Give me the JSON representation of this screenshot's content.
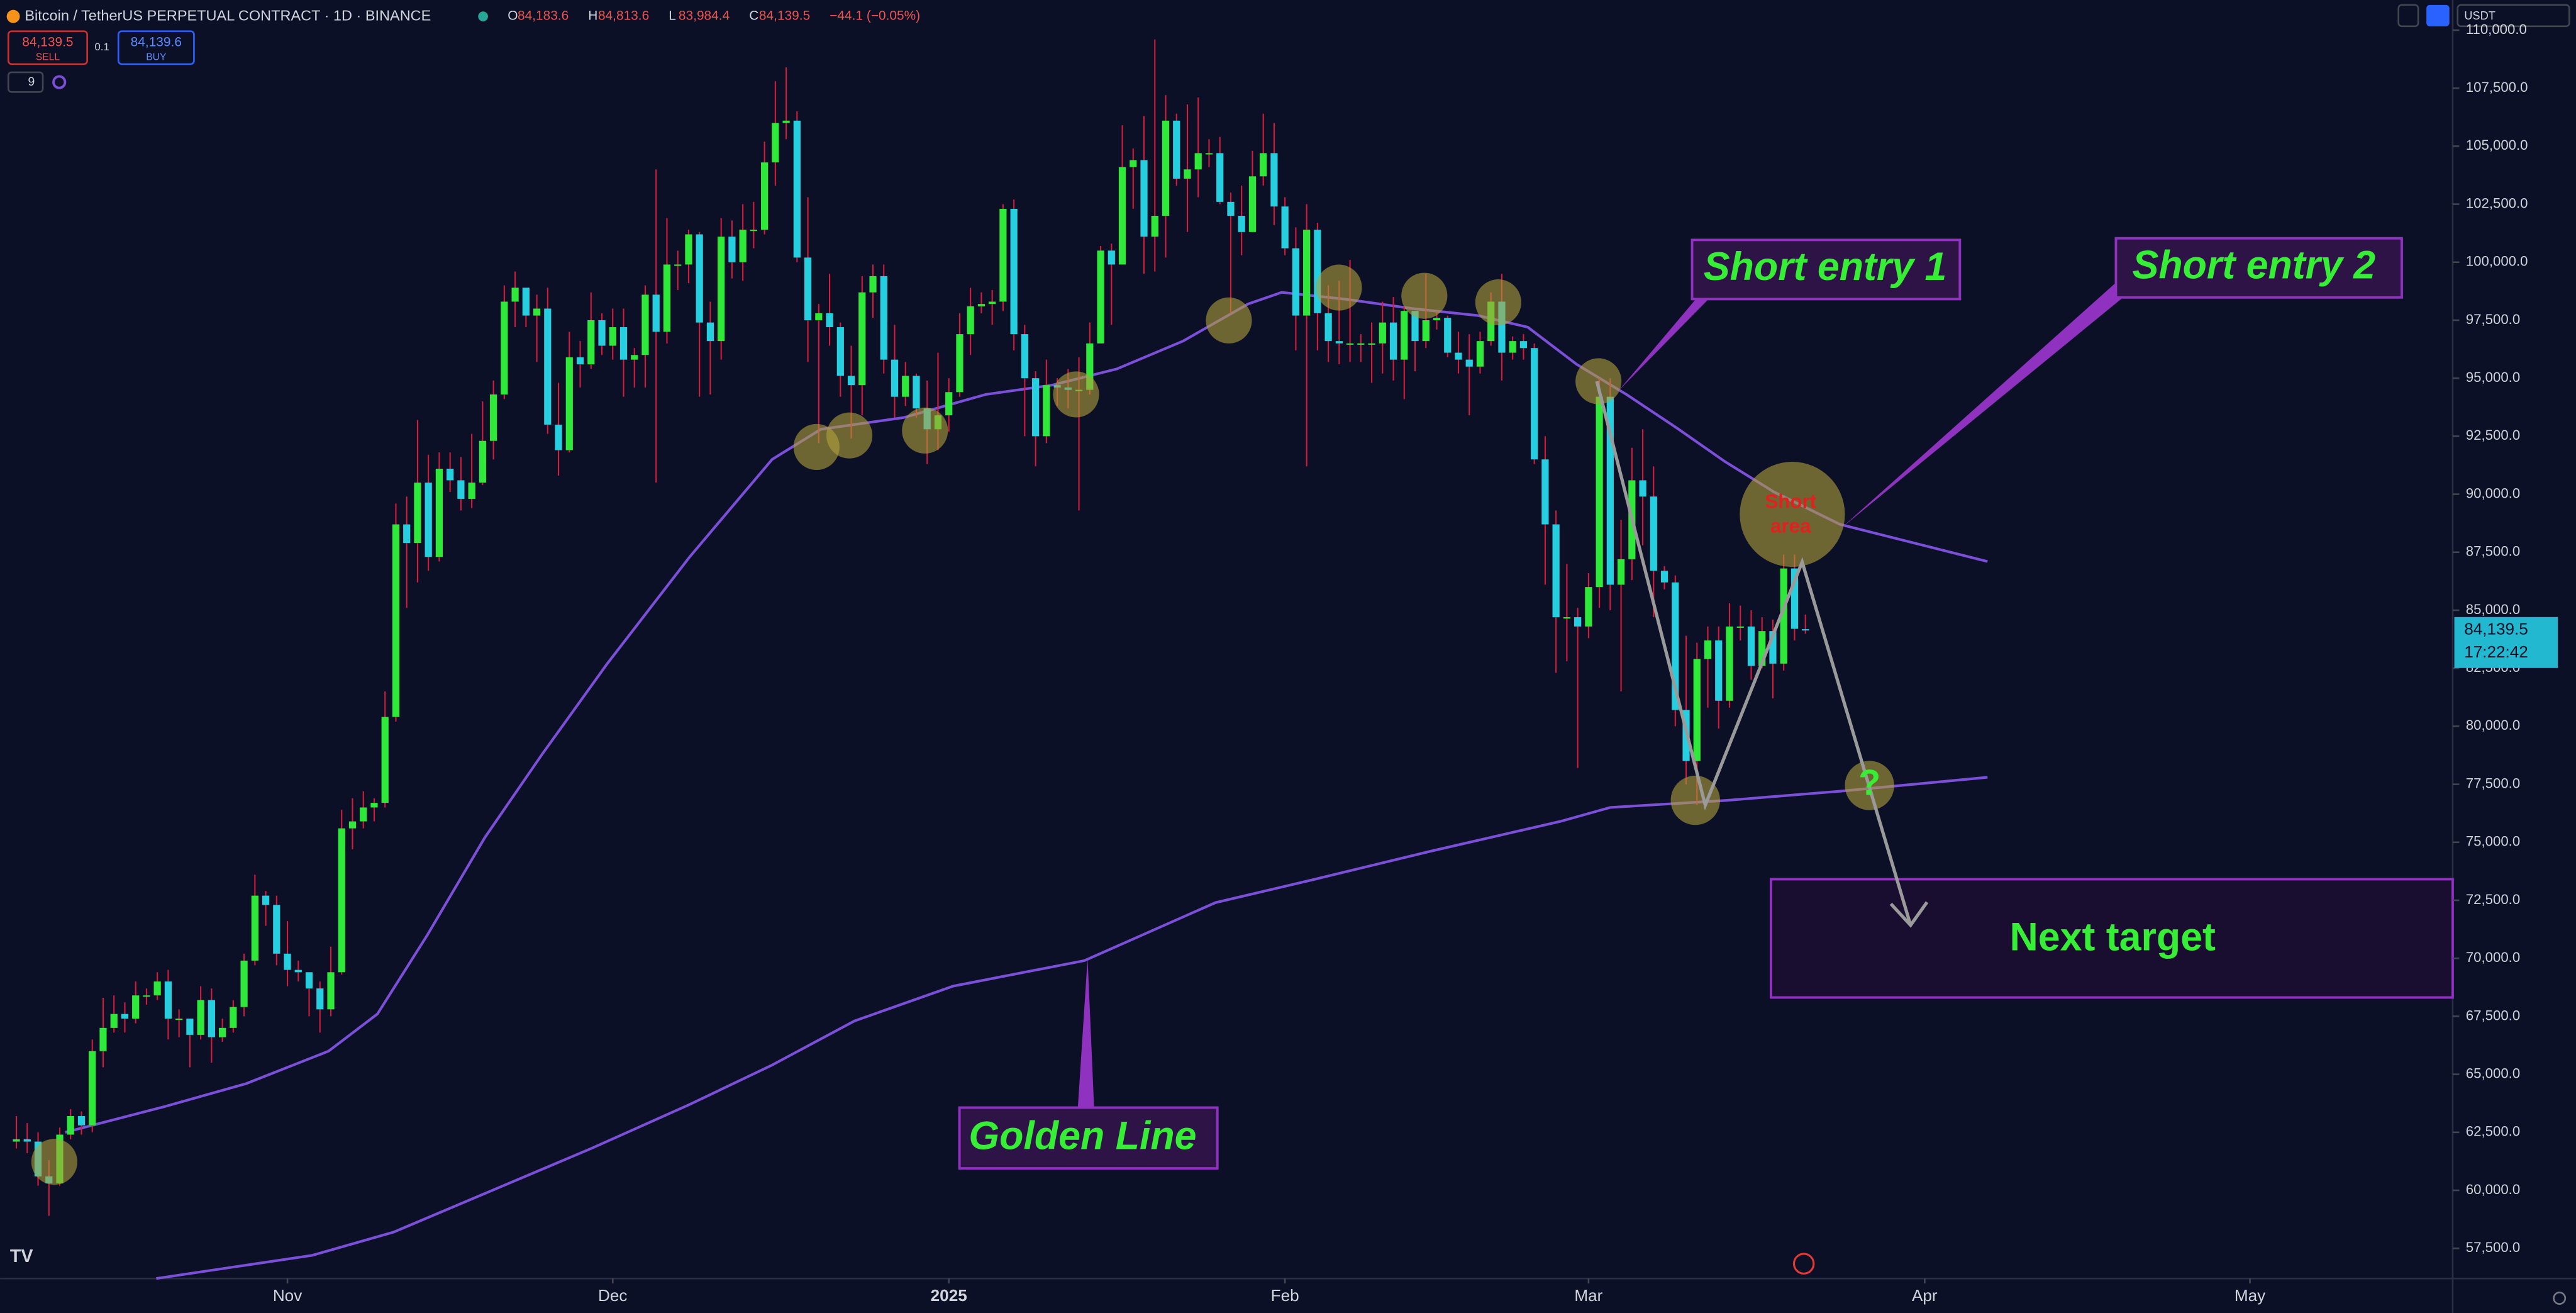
{
  "header": {
    "symbol": "Bitcoin / TetherUS PERPETUAL CONTRACT · 1D · BINANCE",
    "ohlc": [
      {
        "key": "O",
        "value": "84,183.6"
      },
      {
        "key": "H",
        "value": "84,813.6"
      },
      {
        "key": "L",
        "value": "83,984.4"
      },
      {
        "key": "C",
        "value": "84,139.5"
      }
    ],
    "change": "−44.1 (−0.05%)",
    "sell_price": "84,139.5",
    "sell": "SELL",
    "qty": "0.1",
    "buy_price": "84,139.6",
    "buy": "BUY",
    "indicator_count": "9",
    "currency": "USDT"
  },
  "chart_data": {
    "type": "candlestick",
    "up_color": "#2ee83a",
    "down_color": "#26cfe0",
    "wick_color": "#d81b3c",
    "xlim": [
      -1.5,
      224.7
    ],
    "xticks": [
      {
        "value": 25,
        "label": "Nov"
      },
      {
        "value": 55,
        "label": "Dec"
      },
      {
        "value": 86,
        "label": "2025"
      },
      {
        "value": 117,
        "label": "Feb"
      },
      {
        "value": 145,
        "label": "Mar"
      },
      {
        "value": 176,
        "label": "Apr"
      },
      {
        "value": 206,
        "label": "May"
      }
    ],
    "ylim": [
      56200,
      111300
    ],
    "yticks": [
      {
        "value": 57500,
        "label": "57,500.0"
      },
      {
        "value": 60000,
        "label": "60,000.0"
      },
      {
        "value": 62500,
        "label": "62,500.0"
      },
      {
        "value": 65000,
        "label": "65,000.0"
      },
      {
        "value": 67500,
        "label": "67,500.0"
      },
      {
        "value": 70000,
        "label": "70,000.0"
      },
      {
        "value": 72500,
        "label": "72,500.0"
      },
      {
        "value": 75000,
        "label": "75,000.0"
      },
      {
        "value": 77500,
        "label": "77,500.0"
      },
      {
        "value": 80000,
        "label": "80,000.0"
      },
      {
        "value": 82500,
        "label": "82,500.0"
      },
      {
        "value": 85000,
        "label": "85,000.0"
      },
      {
        "value": 87500,
        "label": "87,500.0"
      },
      {
        "value": 90000,
        "label": "90,000.0"
      },
      {
        "value": 92500,
        "label": "92,500.0"
      },
      {
        "value": 95000,
        "label": "95,000.0"
      },
      {
        "value": 97500,
        "label": "97,500.0"
      },
      {
        "value": 100000,
        "label": "100,000.0"
      },
      {
        "value": 102500,
        "label": "102,500.0"
      },
      {
        "value": 105000,
        "label": "105,000.0"
      },
      {
        "value": 107500,
        "label": "107,500.0"
      },
      {
        "value": 110000,
        "label": "110,000.0"
      }
    ],
    "open": [
      62100,
      62200,
      62100,
      60600,
      60300,
      62400,
      63200,
      62800,
      66000,
      67000,
      67600,
      67400,
      68400,
      68400,
      69000,
      67400,
      67400,
      66700,
      68200,
      66600,
      67000,
      67900,
      69900,
      72700,
      72300,
      70200,
      69500,
      69400,
      68700,
      67800,
      69400,
      75600,
      75900,
      76500,
      76700,
      80400,
      88700,
      87900,
      90500,
      87300,
      91100,
      90600,
      89800,
      90500,
      92300,
      94300,
      98300,
      98900,
      97700,
      98000,
      93000,
      91900,
      95900,
      95600,
      97500,
      96400,
      97200,
      95800,
      96000,
      98600,
      97000,
      99900,
      99900,
      101200,
      97400,
      96600,
      101100,
      100000,
      101400,
      101400,
      104300,
      106000,
      106100,
      100200,
      97500,
      97800,
      97200,
      95100,
      94700,
      98700,
      99400,
      95800,
      94200,
      95100,
      93700,
      92800,
      93400,
      94400,
      96900,
      98100,
      98200,
      98300,
      102300,
      96900,
      95000,
      92500,
      94700,
      94600,
      94500,
      94500,
      96500,
      100500,
      99900,
      104100,
      104400,
      101100,
      102000,
      106100,
      103600,
      104000,
      104700,
      104700,
      102600,
      102000,
      101300,
      103700,
      104700,
      102400,
      100600,
      97700,
      101400,
      97800,
      96600,
      96500,
      96500,
      96500,
      96500,
      97400,
      95800,
      97900,
      96600,
      97500,
      97600,
      96100,
      95800,
      95500,
      96600,
      98300,
      96100,
      96600,
      96300,
      91500,
      88700,
      84700,
      84700,
      84300,
      86000,
      94200,
      86100,
      87200,
      90600,
      89900,
      86700,
      86200,
      80700,
      78500,
      82900,
      83700,
      81100,
      84300,
      84300,
      82600,
      84100,
      82700,
      86800,
      84183.6
    ],
    "high": [
      63200,
      62900,
      62500,
      61300,
      62700,
      63500,
      63400,
      66500,
      68300,
      68400,
      68100,
      69000,
      68700,
      69400,
      69500,
      67800,
      67400,
      68800,
      68700,
      67400,
      68200,
      70200,
      73600,
      72900,
      72700,
      71600,
      69900,
      69400,
      69000,
      70500,
      76400,
      76900,
      77200,
      76900,
      81500,
      89600,
      89900,
      93200,
      91700,
      91800,
      91800,
      91600,
      92600,
      94000,
      94900,
      99000,
      99600,
      98800,
      98600,
      98900,
      94800,
      97000,
      96600,
      98700,
      97800,
      98000,
      98000,
      96300,
      99000,
      104000,
      101900,
      100500,
      101400,
      101300,
      98300,
      101900,
      101800,
      102500,
      102600,
      105200,
      107800,
      108400,
      106500,
      102800,
      98200,
      99500,
      97400,
      96400,
      99400,
      99900,
      99900,
      97300,
      95700,
      95200,
      94900,
      96100,
      95000,
      97800,
      98900,
      98700,
      98800,
      102500,
      102700,
      97300,
      95300,
      95800,
      95000,
      95400,
      95900,
      97400,
      100700,
      100800,
      105900,
      104900,
      106300,
      109600,
      107200,
      106400,
      106800,
      107100,
      105300,
      105400,
      103000,
      103300,
      104800,
      106400,
      106000,
      102800,
      101500,
      102500,
      101700,
      99000,
      99200,
      100100,
      96900,
      97400,
      98300,
      98500,
      98100,
      97900,
      99500,
      97900,
      97700,
      97000,
      96900,
      97000,
      98700,
      99500,
      96800,
      96900,
      96500,
      92500,
      89300,
      87000,
      85100,
      86600,
      95000,
      95000,
      88900,
      92000,
      92800,
      91200,
      86900,
      86500,
      83900,
      83600,
      84300,
      84300,
      85300,
      85200,
      85000,
      84700,
      84600,
      87400,
      87400,
      84813.6
    ],
    "low": [
      61800,
      61600,
      60200,
      58900,
      60200,
      62200,
      62400,
      62500,
      65300,
      66800,
      66800,
      67200,
      68000,
      68200,
      66500,
      66600,
      65300,
      66500,
      65500,
      66400,
      66800,
      67500,
      69700,
      71400,
      69700,
      68800,
      69000,
      67500,
      66800,
      67500,
      69300,
      74700,
      75600,
      75900,
      76500,
      80200,
      85100,
      86200,
      86700,
      87100,
      90100,
      89300,
      89400,
      90400,
      91500,
      94100,
      97200,
      97200,
      95700,
      92600,
      90800,
      91800,
      94600,
      95400,
      96000,
      95800,
      94200,
      94600,
      94600,
      90500,
      96500,
      98800,
      99100,
      94200,
      94300,
      95800,
      99300,
      99200,
      100600,
      101200,
      103300,
      105300,
      100000,
      95700,
      92200,
      96400,
      94200,
      92400,
      93400,
      97600,
      95200,
      93300,
      93800,
      93300,
      91300,
      91900,
      92700,
      94200,
      96000,
      97800,
      97300,
      97900,
      96200,
      92500,
      91200,
      92200,
      93800,
      93700,
      89300,
      94300,
      96500,
      97300,
      99900,
      102300,
      99500,
      99600,
      100200,
      103300,
      101300,
      102800,
      104100,
      102500,
      97800,
      100300,
      101300,
      103300,
      101600,
      100300,
      96200,
      91200,
      96200,
      95700,
      95600,
      95700,
      95700,
      94800,
      95200,
      94900,
      94100,
      95300,
      96300,
      97100,
      95900,
      95200,
      93400,
      95200,
      96400,
      94900,
      95800,
      95800,
      91300,
      86100,
      82300,
      82800,
      78200,
      83800,
      85100,
      85000,
      81500,
      86300,
      87800,
      84700,
      85900,
      80000,
      77500,
      76600,
      80800,
      79900,
      80800,
      83700,
      82000,
      82500,
      81200,
      82400,
      83700,
      83984.4
    ],
    "close": [
      62200,
      62100,
      60600,
      60300,
      62400,
      63200,
      62800,
      66000,
      67000,
      67600,
      67400,
      68400,
      68400,
      69000,
      67400,
      67400,
      66700,
      68200,
      66600,
      67000,
      67900,
      69900,
      72700,
      72300,
      70200,
      69500,
      69400,
      68700,
      67800,
      69400,
      75600,
      75900,
      76500,
      76700,
      80400,
      88700,
      87900,
      90500,
      87300,
      91100,
      90600,
      89800,
      90500,
      92300,
      94300,
      98300,
      98900,
      97700,
      98000,
      93000,
      91900,
      95900,
      95600,
      97500,
      96400,
      97200,
      95800,
      96000,
      98600,
      97000,
      99900,
      99900,
      101200,
      97400,
      96600,
      101100,
      100000,
      101400,
      101400,
      104300,
      106000,
      106100,
      100200,
      97500,
      97800,
      97200,
      95100,
      94700,
      98700,
      99400,
      95800,
      94200,
      95100,
      93700,
      92800,
      93400,
      94400,
      96900,
      98100,
      98200,
      98300,
      102300,
      96900,
      95000,
      92500,
      94700,
      94600,
      94500,
      94500,
      96500,
      100500,
      99900,
      104100,
      104400,
      101100,
      102000,
      106100,
      103600,
      104000,
      104700,
      104700,
      102600,
      102000,
      101300,
      103700,
      104700,
      102400,
      100600,
      97700,
      101400,
      97800,
      96600,
      96500,
      96500,
      96500,
      96500,
      97400,
      95800,
      97900,
      96600,
      97500,
      97600,
      96100,
      95800,
      95500,
      96600,
      98300,
      96100,
      96600,
      96300,
      91500,
      88700,
      84700,
      84700,
      84300,
      86000,
      94200,
      86100,
      87200,
      90600,
      89900,
      86700,
      86200,
      80700,
      78500,
      82900,
      83700,
      81100,
      84300,
      84300,
      82600,
      84100,
      82700,
      86800,
      84200,
      84139.5
    ],
    "lines": [
      {
        "color": "#7b4fd8",
        "x": [
          4.5,
          13.6,
          21.2,
          28.8,
          33.3,
          37.9,
          43.2,
          48.5,
          54.5,
          62.1,
          69.7,
          74.2,
          81.8,
          89.4,
          95.5,
          101.5,
          107.6,
          113.6,
          116.7,
          122.7,
          128.8,
          134.8,
          139.4,
          143.9,
          148.5,
          153,
          157.6,
          162.1,
          168.2,
          181.8
        ],
        "values": [
          62500,
          63600,
          64600,
          66000,
          67600,
          71000,
          75200,
          78800,
          82700,
          87300,
          91500,
          92800,
          93300,
          94300,
          94700,
          95400,
          96600,
          98200,
          98700,
          98400,
          98000,
          97700,
          97200,
          95600,
          94300,
          92900,
          91400,
          90100,
          88700,
          87100
        ]
      },
      {
        "color": "#7b4fd8",
        "x": [
          12.9,
          27.3,
          34.8,
          43.9,
          53,
          62.1,
          69.7,
          77.3,
          86.4,
          98.5,
          110.6,
          119.7,
          130.3,
          142.4,
          147,
          157.6,
          168.2,
          181.8
        ],
        "values": [
          56200,
          57200,
          58200,
          60000,
          61800,
          63700,
          65400,
          67300,
          68800,
          69900,
          72400,
          73400,
          74600,
          75900,
          76500,
          76800,
          77200,
          77800
        ]
      }
    ],
    "last_price": {
      "value": 84139.5,
      "label": "84,139.5"
    },
    "countdown": "17:22:42",
    "annotations": {
      "short_entry_1": "Short entry 1",
      "short_entry_2": "Short entry 2",
      "short_area": [
        "Short",
        "area"
      ],
      "question": "?",
      "next_target": "Next target",
      "golden_line": "Golden Line"
    }
  }
}
